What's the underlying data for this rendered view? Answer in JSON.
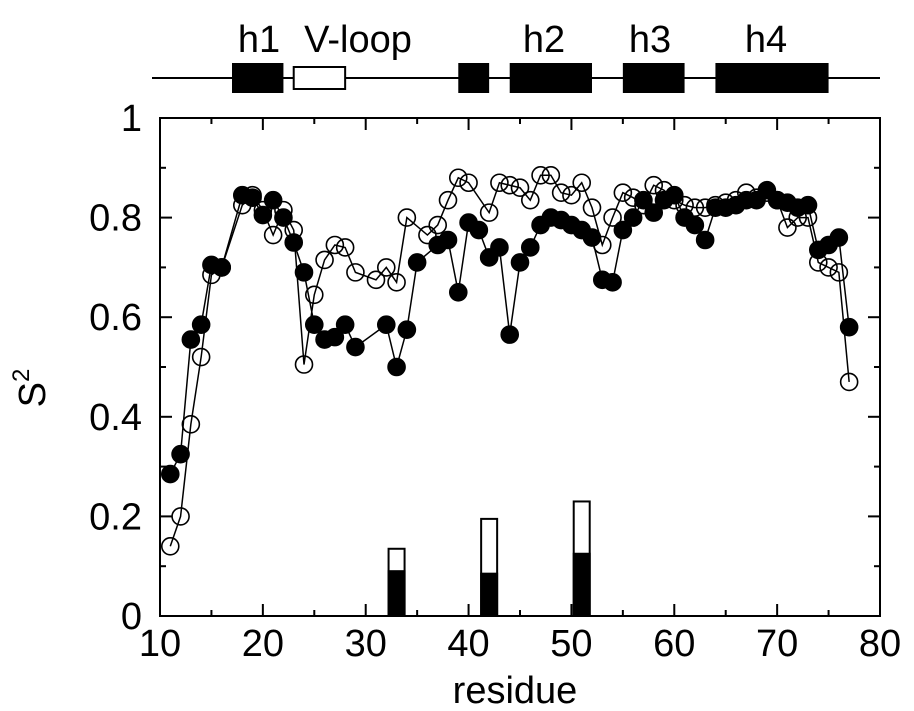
{
  "chart_data": {
    "type": "scatter",
    "xlabel": "residue",
    "ylabel": "S",
    "ylabel_superscript": "2",
    "xlim": [
      10,
      80
    ],
    "ylim": [
      0,
      1
    ],
    "xticks": [
      10,
      20,
      30,
      40,
      50,
      60,
      70,
      80
    ],
    "yticks": [
      0,
      0.2,
      0.4,
      0.6,
      0.8,
      1
    ],
    "xtick_labels": [
      "10",
      "20",
      "30",
      "40",
      "50",
      "60",
      "70",
      "80"
    ],
    "ytick_labels": [
      "0",
      "0.2",
      "0.4",
      "0.6",
      "0.8",
      "1"
    ],
    "grid": false,
    "series": [
      {
        "marker": "filled-circle",
        "color": "#000000",
        "x": [
          11,
          12,
          13,
          14,
          15,
          16,
          18,
          19,
          20,
          21,
          22,
          23,
          24,
          25,
          26,
          27,
          28,
          29,
          32,
          33,
          34,
          35,
          37,
          38,
          39,
          40,
          41,
          42,
          43,
          44,
          45,
          46,
          47,
          48,
          49,
          50,
          51,
          52,
          53,
          54,
          55,
          56,
          57,
          58,
          59,
          60,
          61,
          62,
          63,
          64,
          65,
          66,
          67,
          68,
          69,
          70,
          71,
          72,
          73,
          74,
          75,
          76,
          77
        ],
        "y": [
          0.285,
          0.325,
          0.555,
          0.585,
          0.705,
          0.7,
          0.845,
          0.84,
          0.805,
          0.835,
          0.8,
          0.75,
          0.69,
          0.585,
          0.555,
          0.56,
          0.585,
          0.54,
          0.585,
          0.5,
          0.575,
          0.71,
          0.745,
          0.755,
          0.65,
          0.79,
          0.775,
          0.72,
          0.74,
          0.565,
          0.71,
          0.74,
          0.785,
          0.8,
          0.795,
          0.785,
          0.775,
          0.76,
          0.675,
          0.67,
          0.775,
          0.8,
          0.835,
          0.81,
          0.835,
          0.845,
          0.8,
          0.785,
          0.755,
          0.82,
          0.82,
          0.825,
          0.835,
          0.835,
          0.855,
          0.835,
          0.83,
          0.82,
          0.825,
          0.735,
          0.745,
          0.76,
          0.58
        ]
      },
      {
        "marker": "open-circle",
        "color": "#000000",
        "x": [
          11,
          12,
          13,
          14,
          15,
          16,
          18,
          19,
          20,
          21,
          22,
          23,
          24,
          25,
          26,
          27,
          28,
          29,
          31,
          32,
          33,
          34,
          36,
          37,
          38,
          39,
          40,
          42,
          43,
          44,
          45,
          46,
          47,
          48,
          49,
          50,
          51,
          52,
          53,
          54,
          55,
          56,
          57,
          58,
          59,
          60,
          61,
          62,
          63,
          64,
          65,
          66,
          67,
          68,
          69,
          70,
          71,
          72,
          73,
          74,
          75,
          76,
          77
        ],
        "y": [
          0.14,
          0.2,
          0.385,
          0.52,
          0.685,
          0.7,
          0.825,
          0.845,
          0.815,
          0.765,
          0.815,
          0.775,
          0.505,
          0.645,
          0.715,
          0.745,
          0.74,
          0.69,
          0.675,
          0.7,
          0.67,
          0.8,
          0.765,
          0.785,
          0.835,
          0.88,
          0.87,
          0.81,
          0.87,
          0.865,
          0.86,
          0.835,
          0.885,
          0.885,
          0.85,
          0.845,
          0.87,
          0.82,
          0.745,
          0.8,
          0.85,
          0.84,
          0.825,
          0.865,
          0.855,
          0.835,
          0.825,
          0.82,
          0.82,
          0.825,
          0.83,
          0.835,
          0.85,
          0.84,
          0.85,
          0.835,
          0.78,
          0.8,
          0.8,
          0.71,
          0.7,
          0.69,
          0.47
        ]
      }
    ],
    "bars": [
      {
        "x": 33,
        "filled": 0.09,
        "total": 0.135
      },
      {
        "x": 42,
        "filled": 0.085,
        "total": 0.195
      },
      {
        "x": 51,
        "filled": 0.125,
        "total": 0.23
      }
    ],
    "structure_track": {
      "labels": [
        "h1",
        "V-loop",
        "h2",
        "h3",
        "h4"
      ],
      "elements": [
        {
          "start": 17,
          "end": 22,
          "style": "filled"
        },
        {
          "start": 23,
          "end": 28,
          "style": "open"
        },
        {
          "start": 39,
          "end": 42,
          "style": "filled"
        },
        {
          "start": 44,
          "end": 52,
          "style": "filled"
        },
        {
          "start": 55,
          "end": 61,
          "style": "filled"
        },
        {
          "start": 64,
          "end": 75,
          "style": "filled"
        }
      ]
    }
  }
}
